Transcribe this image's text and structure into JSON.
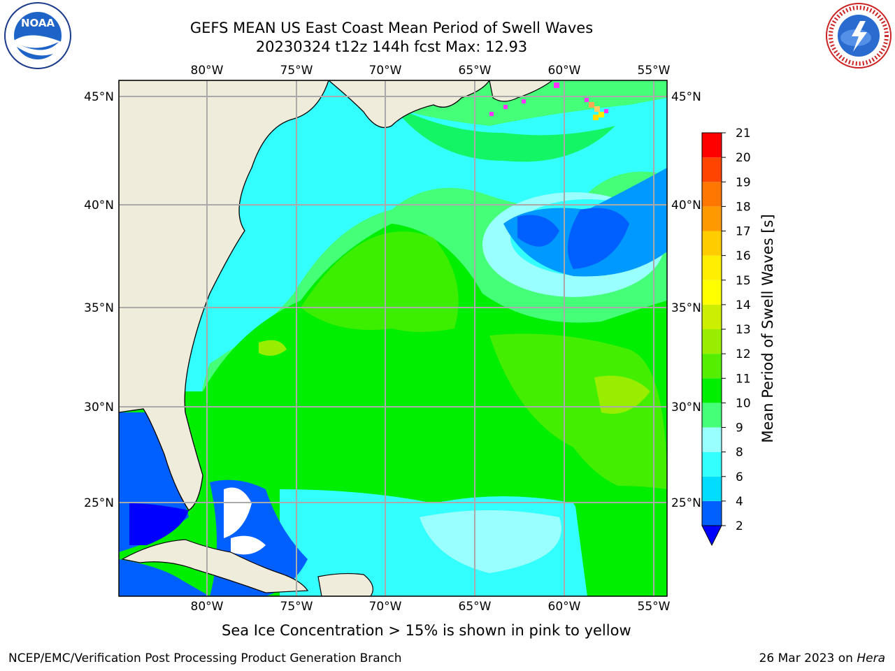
{
  "title": {
    "line1": "GEFS MEAN US East Coast Mean Period of Swell Waves",
    "line2": "20230324 t12z 144h fcst   Max: 12.93"
  },
  "logos": {
    "left": "NOAA",
    "right": "NATIONAL WEATHER SERVICE"
  },
  "map": {
    "lon_labels": [
      "80°W",
      "75°W",
      "70°W",
      "65°W",
      "60°W",
      "55°W"
    ],
    "lat_labels": [
      "45°N",
      "40°N",
      "35°N",
      "30°N",
      "25°N"
    ],
    "land_color": "#efecdc",
    "grid_color": "#aaaaaa"
  },
  "colorbar": {
    "label": "Mean Period of Swell Waves [s]",
    "ticks": [
      "2",
      "4",
      "6",
      "8",
      "9",
      "10",
      "11",
      "12",
      "13",
      "14",
      "15",
      "16",
      "17",
      "18",
      "19",
      "20",
      "21"
    ],
    "colors": [
      "#0060ff",
      "#00ddff",
      "#33ffff",
      "#99ffff",
      "#44ff77",
      "#00ee00",
      "#55ee00",
      "#99ee00",
      "#ccee00",
      "#ffff00",
      "#ffee00",
      "#ffcc00",
      "#ff9900",
      "#ff7700",
      "#ff4400",
      "#ff0000"
    ],
    "under_color": "#0000ff"
  },
  "caption": "Sea Ice Concentration > 15% is shown in pink to yellow",
  "footer": {
    "left": "NCEP/EMC/Verification Post Processing Product Generation Branch",
    "right_date": "26 Mar 2023 on ",
    "right_machine": "Hera"
  }
}
